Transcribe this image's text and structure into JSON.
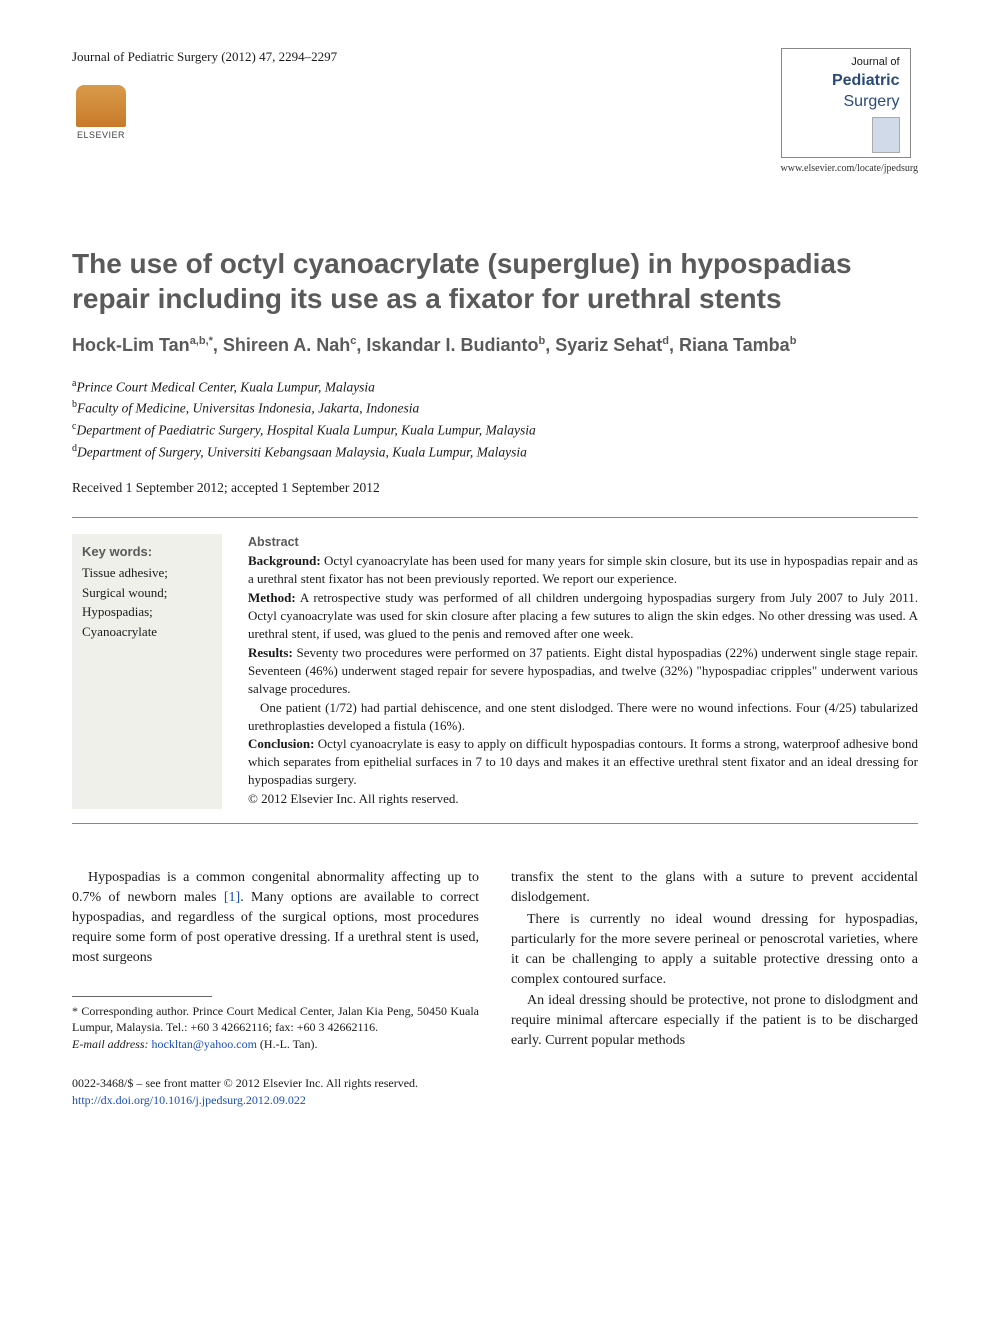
{
  "header": {
    "citation": "Journal of Pediatric Surgery (2012) 47, 2294–2297",
    "elsevier": "ELSEVIER",
    "journal": {
      "of": "Journal of",
      "ped": "Pediatric",
      "surg": "Surgery"
    },
    "url": "www.elsevier.com/locate/jpedsurg"
  },
  "title": "The use of octyl cyanoacrylate (superglue) in hypospadias repair including its use as a fixator for urethral stents",
  "authors_html": "Hock-Lim Tan<sup>a,b,*</sup>, Shireen A. Nah<sup>c</sup>, Iskandar I. Budianto<sup>b</sup>, Syariz Sehat<sup>d</sup>, Riana Tamba<sup>b</sup>",
  "affiliations": [
    {
      "sup": "a",
      "text": "Prince Court Medical Center, Kuala Lumpur, Malaysia"
    },
    {
      "sup": "b",
      "text": "Faculty of Medicine, Universitas Indonesia, Jakarta, Indonesia"
    },
    {
      "sup": "c",
      "text": "Department of Paediatric Surgery, Hospital Kuala Lumpur, Kuala Lumpur, Malaysia"
    },
    {
      "sup": "d",
      "text": "Department of Surgery, Universiti Kebangsaan Malaysia, Kuala Lumpur, Malaysia"
    }
  ],
  "dates": "Received 1 September 2012; accepted 1 September 2012",
  "keywords": {
    "heading": "Key words:",
    "items": "Tissue adhesive; Surgical wound; Hypospadias; Cyanoacrylate"
  },
  "abstract": {
    "heading": "Abstract",
    "background_label": "Background:",
    "background": " Octyl cyanoacrylate has been used for many years for simple skin closure, but its use in hypospadias repair and as a urethral stent fixator has not been previously reported. We report our experience.",
    "method_label": "Method:",
    "method": " A retrospective study was performed of all children undergoing hypospadias surgery from July 2007 to July 2011. Octyl cyanoacrylate was used for skin closure after placing a few sutures to align the skin edges. No other dressing was used. A urethral stent, if used, was glued to the penis and removed after one week.",
    "results_label": "Results:",
    "results1": " Seventy two procedures were performed on 37 patients. Eight distal hypospadias (22%) underwent single stage repair. Seventeen (46%) underwent staged repair for severe hypospadias, and twelve (32%) \"hypospadiac cripples\" underwent various salvage procedures.",
    "results2": "One patient (1/72) had partial dehiscence, and one stent dislodged. There were no wound infections. Four (4/25) tabularized urethroplasties developed a fistula (16%).",
    "conclusion_label": "Conclusion:",
    "conclusion": " Octyl cyanoacrylate is easy to apply on difficult hypospadias contours. It forms a strong, waterproof adhesive bond which separates from epithelial surfaces in 7 to 10 days and makes it an effective urethral stent fixator and an ideal dressing for hypospadias surgery.",
    "copyright": "© 2012 Elsevier Inc. All rights reserved."
  },
  "body": {
    "left": {
      "p1a": "Hypospadias is a common congenital abnormality affecting up to 0.7% of newborn males ",
      "p1ref": "[1]",
      "p1b": ". Many options are available to correct hypospadias, and regardless of the surgical options, most procedures require some form of post operative dressing. If a urethral stent is used, most surgeons"
    },
    "right": {
      "p1": "transfix the stent to the glans with a suture to prevent accidental dislodgement.",
      "p2": "There is currently no ideal wound dressing for hypospadias, particularly for the more severe perineal or penoscrotal varieties, where it can be challenging to apply a suitable protective dressing onto a complex contoured surface.",
      "p3": "An ideal dressing should be protective, not prone to dislodgment and require minimal aftercare especially if the patient is to be discharged early. Current popular methods"
    }
  },
  "footnote": {
    "corresponding": "* Corresponding author. Prince Court Medical Center, Jalan Kia Peng, 50450 Kuala Lumpur, Malaysia. Tel.: +60 3 42662116; fax: +60 3 42662116.",
    "email_label": "E-mail address:",
    "email": "hockltan@yahoo.com",
    "email_who": " (H.-L. Tan)."
  },
  "footer": {
    "line1": "0022-3468/$ – see front matter © 2012 Elsevier Inc. All rights reserved.",
    "doi": "http://dx.doi.org/10.1016/j.jpedsurg.2012.09.022"
  },
  "colors": {
    "heading_gray": "#5a5a5a",
    "link_blue": "#1a4fb5",
    "kw_bg": "#f0f0ea",
    "text": "#1a1a1a"
  }
}
